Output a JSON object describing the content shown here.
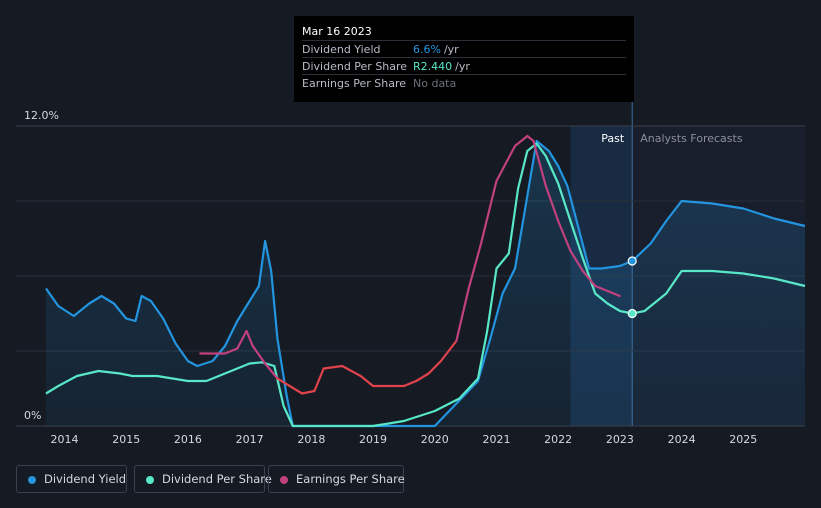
{
  "tooltip": {
    "date": "Mar 16 2023",
    "rows": [
      {
        "label": "Dividend Yield",
        "value": "6.6%",
        "unit": "/yr",
        "color": "#2394df"
      },
      {
        "label": "Dividend Per Share",
        "value": "R2.440",
        "unit": "/yr",
        "color": "#58e8c8"
      },
      {
        "label": "Earnings Per Share",
        "value": "No data",
        "unit": "",
        "color": "#6a6f78"
      }
    ]
  },
  "labels": {
    "past": "Past",
    "forecast": "Analysts Forecasts"
  },
  "legend": [
    {
      "label": "Dividend Yield",
      "color": "#2394df"
    },
    {
      "label": "Dividend Per Share",
      "color": "#58e8c8"
    },
    {
      "label": "Earnings Per Share",
      "color": "#c0417e"
    }
  ],
  "chart_data": {
    "type": "line",
    "y_tick_labels": [
      "12.0%",
      "0%"
    ],
    "ylim": [
      0,
      12
    ],
    "xlim": [
      2013.7,
      2026.0
    ],
    "x_ticks": [
      2014,
      2015,
      2016,
      2017,
      2018,
      2019,
      2020,
      2021,
      2022,
      2023,
      2024,
      2025
    ],
    "x_tick_labels": [
      "2014",
      "2015",
      "2016",
      "2017",
      "2018",
      "2019",
      "2020",
      "2021",
      "2022",
      "2023",
      "2024",
      "2025"
    ],
    "grid": true,
    "past_region": [
      2022.2,
      2023.2
    ],
    "highlight_x": 2023.2,
    "series": [
      {
        "name": "Dividend Yield",
        "color": "#2394df",
        "x": [
          2013.7,
          2013.9,
          2014.15,
          2014.4,
          2014.6,
          2014.8,
          2015.0,
          2015.15,
          2015.25,
          2015.4,
          2015.6,
          2015.8,
          2016.0,
          2016.15,
          2016.4,
          2016.6,
          2016.8,
          2017.0,
          2017.15,
          2017.25,
          2017.35,
          2017.45,
          2017.6,
          2017.7,
          2018.0,
          2019.0,
          2020.0,
          2020.7,
          2020.9,
          2021.1,
          2021.3,
          2021.5,
          2021.65,
          2021.85,
          2022.0,
          2022.15,
          2022.3,
          2022.5,
          2022.7,
          2023.0,
          2023.2,
          2023.5,
          2023.75,
          2024.0,
          2024.5,
          2025.0,
          2025.5,
          2026.0
        ],
        "y": [
          5.5,
          4.8,
          4.4,
          4.9,
          5.2,
          4.9,
          4.3,
          4.2,
          5.2,
          5.0,
          4.3,
          3.3,
          2.6,
          2.4,
          2.6,
          3.2,
          4.2,
          5.0,
          5.6,
          7.4,
          6.2,
          3.5,
          1.2,
          0.0,
          0.0,
          0.0,
          0.0,
          1.8,
          3.5,
          5.3,
          6.3,
          9.2,
          11.4,
          11.0,
          10.4,
          9.6,
          8.2,
          6.3,
          6.3,
          6.4,
          6.6,
          7.3,
          8.2,
          9.0,
          8.9,
          8.7,
          8.3,
          8.0
        ]
      },
      {
        "name": "Dividend Per Share",
        "color": "#58e8c8",
        "x": [
          2013.7,
          2013.9,
          2014.2,
          2014.55,
          2014.9,
          2015.1,
          2015.5,
          2016.0,
          2016.3,
          2016.7,
          2017.0,
          2017.2,
          2017.4,
          2017.55,
          2017.7,
          2018.0,
          2019.0,
          2019.5,
          2020.0,
          2020.4,
          2020.7,
          2020.85,
          2021.0,
          2021.2,
          2021.35,
          2021.5,
          2021.65,
          2021.8,
          2022.0,
          2022.2,
          2022.4,
          2022.6,
          2022.8,
          2023.0,
          2023.2,
          2023.4,
          2023.75,
          2024.0,
          2024.5,
          2025.0,
          2025.5,
          2026.0
        ],
        "y": [
          1.3,
          1.6,
          2.0,
          2.2,
          2.1,
          2.0,
          2.0,
          1.8,
          1.8,
          2.2,
          2.5,
          2.55,
          2.4,
          0.8,
          0.0,
          0.0,
          0.0,
          0.2,
          0.6,
          1.1,
          1.9,
          3.8,
          6.3,
          6.9,
          9.5,
          11.0,
          11.3,
          10.8,
          9.7,
          8.2,
          6.7,
          5.3,
          4.9,
          4.6,
          4.5,
          4.6,
          5.3,
          6.2,
          6.2,
          6.1,
          5.9,
          5.6
        ]
      },
      {
        "name": "Earnings Per Share",
        "color": "#c0417e",
        "x": [
          2016.2,
          2016.6,
          2016.8,
          2016.95,
          2017.05,
          2017.25,
          2017.45,
          2017.65,
          2017.85,
          2018.05,
          2018.2,
          2018.5,
          2018.8,
          2019.0,
          2019.5,
          2019.7,
          2019.9,
          2020.1,
          2020.35,
          2020.55,
          2020.75,
          2021.0,
          2021.3,
          2021.5,
          2021.6,
          2021.8,
          2022.0,
          2022.2,
          2022.4,
          2022.6,
          2022.8,
          2023.0
        ],
        "y": [
          2.9,
          2.9,
          3.1,
          3.8,
          3.2,
          2.5,
          1.9,
          1.6,
          1.3,
          1.4,
          2.3,
          2.4,
          2.0,
          1.6,
          1.6,
          1.8,
          2.1,
          2.6,
          3.4,
          5.5,
          7.3,
          9.8,
          11.2,
          11.6,
          11.4,
          9.6,
          8.2,
          7.0,
          6.2,
          5.6,
          5.4,
          5.2
        ]
      }
    ]
  }
}
